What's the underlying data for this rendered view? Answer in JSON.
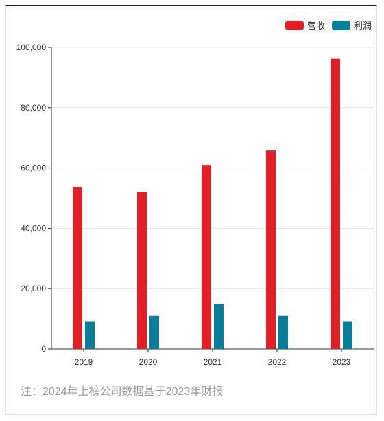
{
  "chart_data": {
    "type": "bar",
    "categories": [
      "2019",
      "2020",
      "2021",
      "2022",
      "2023"
    ],
    "series": [
      {
        "name": "营收",
        "color": "#e01f26",
        "values": [
          53700,
          52000,
          61000,
          65800,
          96200
        ]
      },
      {
        "name": "利润",
        "color": "#0a7d9b",
        "values": [
          9000,
          11000,
          15000,
          11000,
          9000
        ]
      }
    ],
    "ylim": [
      0,
      100000
    ],
    "yticks": [
      "0",
      "20,000",
      "40,000",
      "60,000",
      "80,000",
      "100,000"
    ],
    "ytick_values": [
      0,
      20000,
      40000,
      60000,
      80000,
      100000
    ],
    "grid": true,
    "legend_position": "top-right"
  },
  "footnote": "注：2024年上榜公司数据基于2023年财报"
}
